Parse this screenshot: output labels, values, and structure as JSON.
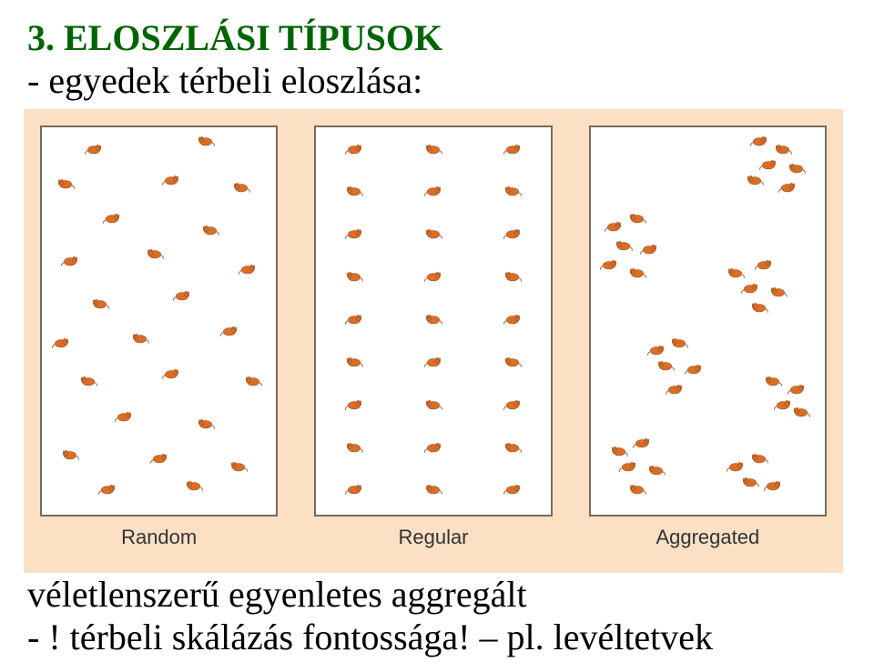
{
  "text": {
    "title": "3. ELOSZLÁSI TÍPUSOK",
    "subtitle": "- egyedek térbeli eloszlása:",
    "footer1": "véletlenszerű  egyenletes  aggregált",
    "footer2": "- ! térbeli skálázás fontossága! – pl. levéltetvek"
  },
  "colors": {
    "title_color": "#006400",
    "text_color": "#000000",
    "figure_bg": "#fbe0c4",
    "panel_bg": "#ffffff",
    "panel_border": "#7a6a5a",
    "label_color": "#333333",
    "mouse_fill": "#d96f27",
    "mouse_stroke": "#9c4a18"
  },
  "typography": {
    "title_fontsize": 40,
    "subtitle_fontsize": 40,
    "footer_fontsize": 40,
    "panel_label_fontsize": 22
  },
  "figure": {
    "panel_border_width": 2,
    "mouse_scale": 0.85,
    "panels": [
      {
        "label": "Random",
        "points": [
          {
            "x": 22,
            "y": 6,
            "flip": false
          },
          {
            "x": 70,
            "y": 4,
            "flip": true
          },
          {
            "x": 10,
            "y": 15,
            "flip": true
          },
          {
            "x": 55,
            "y": 14,
            "flip": false
          },
          {
            "x": 85,
            "y": 16,
            "flip": true
          },
          {
            "x": 30,
            "y": 24,
            "flip": false
          },
          {
            "x": 72,
            "y": 27,
            "flip": true
          },
          {
            "x": 12,
            "y": 35,
            "flip": false
          },
          {
            "x": 48,
            "y": 33,
            "flip": true
          },
          {
            "x": 88,
            "y": 37,
            "flip": false
          },
          {
            "x": 25,
            "y": 46,
            "flip": true
          },
          {
            "x": 60,
            "y": 44,
            "flip": false
          },
          {
            "x": 8,
            "y": 56,
            "flip": false
          },
          {
            "x": 42,
            "y": 55,
            "flip": true
          },
          {
            "x": 80,
            "y": 53,
            "flip": false
          },
          {
            "x": 20,
            "y": 66,
            "flip": true
          },
          {
            "x": 55,
            "y": 64,
            "flip": false
          },
          {
            "x": 90,
            "y": 66,
            "flip": true
          },
          {
            "x": 35,
            "y": 75,
            "flip": false
          },
          {
            "x": 70,
            "y": 77,
            "flip": true
          },
          {
            "x": 12,
            "y": 85,
            "flip": true
          },
          {
            "x": 50,
            "y": 86,
            "flip": false
          },
          {
            "x": 84,
            "y": 88,
            "flip": true
          },
          {
            "x": 28,
            "y": 94,
            "flip": false
          },
          {
            "x": 65,
            "y": 93,
            "flip": true
          }
        ]
      },
      {
        "label": "Regular",
        "points": [
          {
            "x": 16,
            "y": 6,
            "flip": false
          },
          {
            "x": 50,
            "y": 6,
            "flip": true
          },
          {
            "x": 84,
            "y": 6,
            "flip": false
          },
          {
            "x": 16,
            "y": 17,
            "flip": true
          },
          {
            "x": 50,
            "y": 17,
            "flip": false
          },
          {
            "x": 84,
            "y": 17,
            "flip": true
          },
          {
            "x": 16,
            "y": 28,
            "flip": false
          },
          {
            "x": 50,
            "y": 28,
            "flip": true
          },
          {
            "x": 84,
            "y": 28,
            "flip": false
          },
          {
            "x": 16,
            "y": 39,
            "flip": true
          },
          {
            "x": 50,
            "y": 39,
            "flip": false
          },
          {
            "x": 84,
            "y": 39,
            "flip": true
          },
          {
            "x": 16,
            "y": 50,
            "flip": false
          },
          {
            "x": 50,
            "y": 50,
            "flip": true
          },
          {
            "x": 84,
            "y": 50,
            "flip": false
          },
          {
            "x": 16,
            "y": 61,
            "flip": true
          },
          {
            "x": 50,
            "y": 61,
            "flip": false
          },
          {
            "x": 84,
            "y": 61,
            "flip": true
          },
          {
            "x": 16,
            "y": 72,
            "flip": false
          },
          {
            "x": 50,
            "y": 72,
            "flip": true
          },
          {
            "x": 84,
            "y": 72,
            "flip": false
          },
          {
            "x": 16,
            "y": 83,
            "flip": true
          },
          {
            "x": 50,
            "y": 83,
            "flip": false
          },
          {
            "x": 84,
            "y": 83,
            "flip": true
          },
          {
            "x": 16,
            "y": 94,
            "flip": false
          },
          {
            "x": 50,
            "y": 94,
            "flip": true
          },
          {
            "x": 84,
            "y": 94,
            "flip": false
          }
        ]
      },
      {
        "label": "Aggregated",
        "points": [
          {
            "x": 72,
            "y": 4,
            "flip": false
          },
          {
            "x": 82,
            "y": 6,
            "flip": true
          },
          {
            "x": 76,
            "y": 10,
            "flip": false
          },
          {
            "x": 88,
            "y": 11,
            "flip": true
          },
          {
            "x": 70,
            "y": 14,
            "flip": true
          },
          {
            "x": 84,
            "y": 16,
            "flip": false
          },
          {
            "x": 10,
            "y": 26,
            "flip": false
          },
          {
            "x": 20,
            "y": 24,
            "flip": true
          },
          {
            "x": 14,
            "y": 31,
            "flip": true
          },
          {
            "x": 25,
            "y": 32,
            "flip": false
          },
          {
            "x": 8,
            "y": 36,
            "flip": false
          },
          {
            "x": 20,
            "y": 38,
            "flip": true
          },
          {
            "x": 62,
            "y": 38,
            "flip": true
          },
          {
            "x": 74,
            "y": 36,
            "flip": false
          },
          {
            "x": 68,
            "y": 42,
            "flip": false
          },
          {
            "x": 80,
            "y": 43,
            "flip": true
          },
          {
            "x": 72,
            "y": 47,
            "flip": true
          },
          {
            "x": 28,
            "y": 58,
            "flip": false
          },
          {
            "x": 38,
            "y": 56,
            "flip": true
          },
          {
            "x": 32,
            "y": 62,
            "flip": true
          },
          {
            "x": 44,
            "y": 63,
            "flip": false
          },
          {
            "x": 36,
            "y": 68,
            "flip": false
          },
          {
            "x": 78,
            "y": 66,
            "flip": true
          },
          {
            "x": 88,
            "y": 68,
            "flip": false
          },
          {
            "x": 82,
            "y": 72,
            "flip": false
          },
          {
            "x": 90,
            "y": 74,
            "flip": true
          },
          {
            "x": 12,
            "y": 84,
            "flip": true
          },
          {
            "x": 22,
            "y": 82,
            "flip": false
          },
          {
            "x": 16,
            "y": 88,
            "flip": false
          },
          {
            "x": 28,
            "y": 89,
            "flip": true
          },
          {
            "x": 20,
            "y": 94,
            "flip": true
          },
          {
            "x": 62,
            "y": 88,
            "flip": false
          },
          {
            "x": 72,
            "y": 86,
            "flip": true
          },
          {
            "x": 68,
            "y": 92,
            "flip": true
          },
          {
            "x": 78,
            "y": 93,
            "flip": false
          }
        ]
      }
    ]
  }
}
